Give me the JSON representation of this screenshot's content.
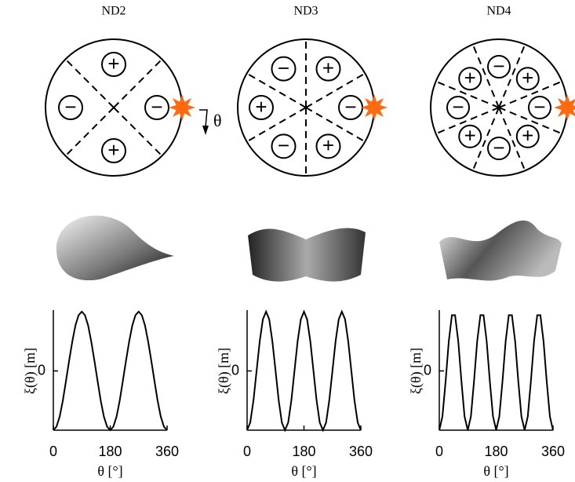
{
  "chart_data": [
    {
      "type": "line",
      "title": "ND2",
      "xlabel": "θ [°]",
      "ylabel": "ξ(θ) [m]",
      "x": [
        0,
        10,
        20,
        30,
        40,
        50,
        60,
        70,
        80,
        90,
        100,
        110,
        120,
        130,
        140,
        150,
        160,
        170,
        180,
        190,
        200,
        210,
        220,
        230,
        240,
        250,
        260,
        270,
        280,
        290,
        300,
        310,
        320,
        330,
        340,
        350,
        360
      ],
      "series": [
        {
          "color": "#000000",
          "values": [
            -1,
            -0.94,
            -0.77,
            -0.5,
            -0.17,
            0.17,
            0.5,
            0.77,
            0.94,
            1,
            0.94,
            0.77,
            0.5,
            0.17,
            -0.17,
            -0.5,
            -0.77,
            -0.94,
            -1,
            -0.94,
            -0.77,
            -0.5,
            -0.17,
            0.17,
            0.5,
            0.77,
            0.94,
            1,
            0.94,
            0.77,
            0.5,
            0.17,
            -0.17,
            -0.5,
            -0.77,
            -0.94,
            -1
          ]
        }
      ],
      "xlim": [
        0,
        360
      ],
      "ylim": [
        -1,
        1
      ],
      "xticks": [
        0,
        180,
        360
      ],
      "yticks": [
        0
      ]
    },
    {
      "type": "line",
      "title": "ND3",
      "xlabel": "θ [°]",
      "ylabel": "ξ(θ) [m]",
      "x": [
        0,
        10,
        20,
        30,
        40,
        50,
        60,
        70,
        80,
        90,
        100,
        110,
        120,
        130,
        140,
        150,
        160,
        170,
        180,
        190,
        200,
        210,
        220,
        230,
        240,
        250,
        260,
        270,
        280,
        290,
        300,
        310,
        320,
        330,
        340,
        350,
        360
      ],
      "series": [
        {
          "color": "#000000",
          "values": [
            -1,
            -0.87,
            -0.5,
            0,
            0.5,
            0.87,
            1,
            0.87,
            0.5,
            0,
            -0.5,
            -0.87,
            -1,
            -0.87,
            -0.5,
            0,
            0.5,
            0.87,
            1,
            0.87,
            0.5,
            0,
            -0.5,
            -0.87,
            -1,
            -0.87,
            -0.5,
            0,
            0.5,
            0.87,
            1,
            0.87,
            0.5,
            0,
            -0.5,
            -0.87,
            -1
          ]
        }
      ],
      "xlim": [
        0,
        360
      ],
      "ylim": [
        -1,
        1
      ],
      "xticks": [
        0,
        180,
        360
      ],
      "yticks": [
        0
      ]
    },
    {
      "type": "line",
      "title": "ND4",
      "xlabel": "θ [°]",
      "ylabel": "ξ(θ) [m]",
      "x": [
        0,
        10,
        20,
        30,
        40,
        50,
        60,
        70,
        80,
        90,
        100,
        110,
        120,
        130,
        140,
        150,
        160,
        170,
        180,
        190,
        200,
        210,
        220,
        230,
        240,
        250,
        260,
        270,
        280,
        290,
        300,
        310,
        320,
        330,
        340,
        350,
        360
      ],
      "series": [
        {
          "color": "#000000",
          "values": [
            -1,
            -0.77,
            -0.17,
            0.5,
            0.94,
            0.94,
            0.5,
            -0.17,
            -0.77,
            -1,
            -0.77,
            -0.17,
            0.5,
            0.94,
            0.94,
            0.5,
            -0.17,
            -0.77,
            -1,
            -0.77,
            -0.17,
            0.5,
            0.94,
            0.94,
            0.5,
            -0.17,
            -0.77,
            -1,
            -0.77,
            -0.17,
            0.5,
            0.94,
            0.94,
            0.5,
            -0.17,
            -0.77,
            -1
          ]
        }
      ],
      "xlim": [
        0,
        360
      ],
      "ylim": [
        -1,
        1
      ],
      "xticks": [
        0,
        180,
        360
      ],
      "yticks": [
        0
      ]
    }
  ],
  "diagrams": [
    {
      "signs": [
        "−",
        "+",
        "−",
        "+"
      ],
      "angle_label": "θ"
    },
    {
      "signs": [
        "−",
        "+",
        "−",
        "+",
        "−",
        "+"
      ]
    },
    {
      "signs": [
        "−",
        "+",
        "−",
        "+",
        "−",
        "+",
        "−",
        "+"
      ]
    }
  ]
}
